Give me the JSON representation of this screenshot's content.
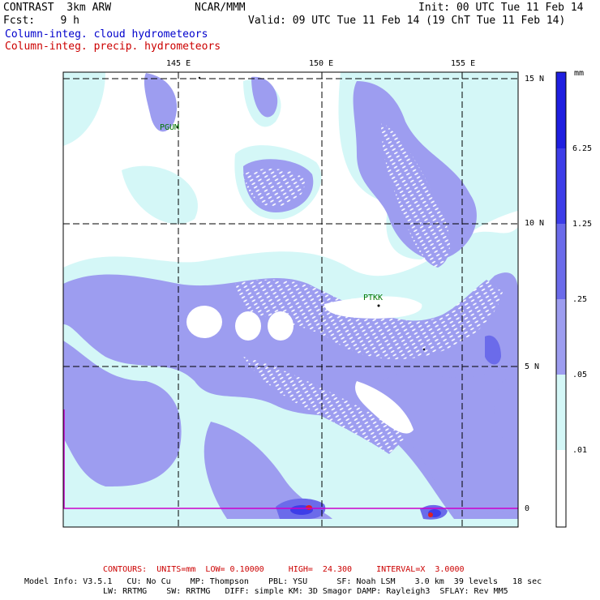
{
  "header": {
    "model": "CONTRAST  3km ARW",
    "org": "NCAR/MMM",
    "init": "Init: 00 UTC Tue 11 Feb 14",
    "fcst": "Fcst:    9 h",
    "valid": "Valid: 09 UTC Tue 11 Feb 14 (19 ChT Tue 11 Feb 14)",
    "legend_cloud": "Column-integ. cloud hydrometeors",
    "legend_precip": "Column-integ. precip. hydrometeors"
  },
  "map": {
    "lon_labels": [
      "145 E",
      "150 E",
      "155 E"
    ],
    "lat_labels": [
      "15 N",
      "10 N",
      "5 N",
      "0"
    ],
    "stations": [
      {
        "name": "PGUM"
      },
      {
        "name": "PTKK"
      }
    ]
  },
  "colorbar": {
    "unit": "mm",
    "levels": [
      "6.25",
      "1.25",
      ".25",
      ".05",
      ".01"
    ],
    "colors": [
      "#1f1fe0",
      "#3d3de8",
      "#6b6bea",
      "#9d9df0",
      "#d4f7f7",
      "#ffffff"
    ]
  },
  "footer": {
    "contours": "CONTOURS:  UNITS=mm  LOW= 0.10000     HIGH=  24.300     INTERVAL=X  3.0000",
    "model_info_1": "Model Info: V3.5.1   CU: No Cu    MP: Thompson    PBL: YSU      SF: Noah LSM    3.0 km  39 levels   18 sec",
    "model_info_2": "LW: RRTMG    SW: RRTMG   DIFF: simple KM: 3D Smagor DAMP: Rayleigh3  SFLAY: Rev MM5"
  },
  "colors": {
    "cloud_text": "#0000cc",
    "precip_text": "#cc0000",
    "station_text": "#007700",
    "equator_line": "#cc00cc"
  }
}
